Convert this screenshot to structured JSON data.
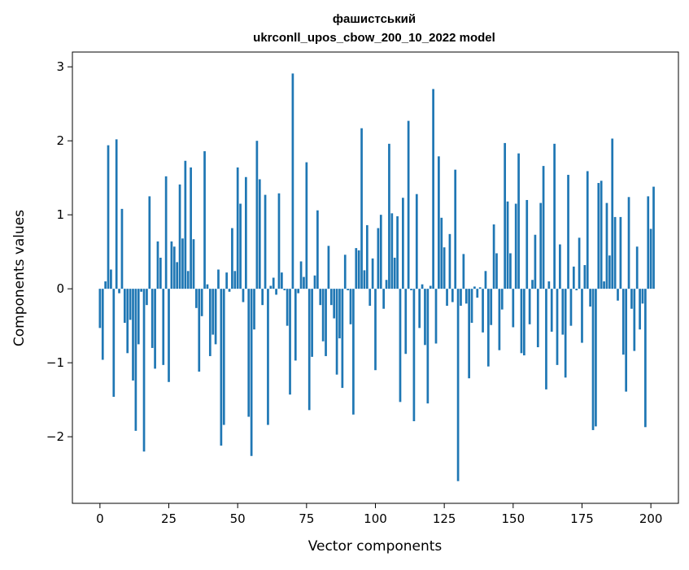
{
  "chart_data": {
    "type": "bar",
    "title_line1": "фашистський",
    "title_line2": "ukrconll_upos_cbow_200_10_2022 model",
    "xlabel": "Vector components",
    "ylabel": "Components values",
    "xlim": [
      -10,
      210
    ],
    "ylim": [
      -2.9,
      3.2
    ],
    "xticks": [
      0,
      25,
      50,
      75,
      100,
      125,
      150,
      175,
      200
    ],
    "xtick_labels": [
      "0",
      "25",
      "50",
      "75",
      "100",
      "125",
      "150",
      "175",
      "200"
    ],
    "yticks": [
      -2,
      -1,
      0,
      1,
      2,
      3
    ],
    "ytick_labels": [
      "−2",
      "−1",
      "0",
      "1",
      "2",
      "3"
    ],
    "grid": false,
    "bar_color": "#1f77b4",
    "values": [
      -0.53,
      -0.96,
      0.1,
      1.94,
      0.26,
      -1.46,
      2.02,
      -0.06,
      1.08,
      -0.46,
      -0.87,
      -0.42,
      -1.24,
      -1.92,
      -0.75,
      -0.04,
      -2.2,
      -0.22,
      1.25,
      -0.8,
      -1.08,
      0.64,
      0.42,
      -1.03,
      1.52,
      -1.26,
      0.64,
      0.57,
      0.36,
      1.41,
      0.68,
      1.73,
      0.24,
      1.64,
      0.67,
      -0.26,
      -1.12,
      -0.37,
      1.86,
      0.06,
      -0.91,
      -0.62,
      -0.75,
      0.26,
      -2.12,
      -1.84,
      0.22,
      -0.04,
      0.82,
      0.24,
      1.64,
      1.15,
      -0.18,
      1.51,
      -1.73,
      -2.26,
      -0.55,
      2.0,
      1.48,
      -0.22,
      1.27,
      -1.84,
      0.04,
      0.15,
      -0.08,
      1.29,
      0.22,
      -0.02,
      -0.5,
      -1.43,
      2.91,
      -0.97,
      -0.06,
      0.37,
      0.16,
      1.71,
      -1.64,
      -0.92,
      0.18,
      1.06,
      -0.22,
      -0.71,
      -0.91,
      0.58,
      -0.22,
      -0.4,
      -1.16,
      -0.67,
      -1.34,
      0.46,
      -0.02,
      -0.48,
      -1.7,
      0.55,
      0.52,
      2.17,
      0.25,
      0.86,
      -0.23,
      0.41,
      -1.1,
      0.82,
      1.0,
      -0.27,
      0.12,
      1.96,
      1.02,
      0.42,
      0.98,
      -1.53,
      1.23,
      -0.88,
      2.27,
      -0.02,
      -1.79,
      1.28,
      -0.53,
      0.06,
      -0.76,
      -1.55,
      0.04,
      2.7,
      -0.74,
      1.79,
      0.96,
      0.56,
      -0.23,
      0.74,
      -0.18,
      1.61,
      -2.6,
      -0.23,
      0.47,
      -0.2,
      -1.21,
      -0.46,
      0.03,
      -0.12,
      0.02,
      -0.59,
      0.24,
      -1.05,
      -0.49,
      0.87,
      0.48,
      -0.83,
      -0.28,
      1.97,
      1.18,
      0.48,
      -0.52,
      1.15,
      1.83,
      -0.87,
      -0.9,
      1.2,
      -0.48,
      0.12,
      0.73,
      -0.79,
      1.16,
      1.66,
      -1.36,
      0.1,
      -0.58,
      1.96,
      -1.03,
      0.6,
      -0.62,
      -1.2,
      1.54,
      -0.5,
      0.3,
      -0.02,
      0.69,
      -0.73,
      0.32,
      1.59,
      -0.24,
      -1.91,
      -1.86,
      1.43,
      1.46,
      0.1,
      1.16,
      0.45,
      2.03,
      0.97,
      -0.16,
      0.97,
      -0.89,
      -1.39,
      1.24,
      -0.27,
      -0.84,
      0.57,
      -0.55,
      -0.2,
      -1.87,
      1.25,
      0.81,
      1.38
    ]
  }
}
